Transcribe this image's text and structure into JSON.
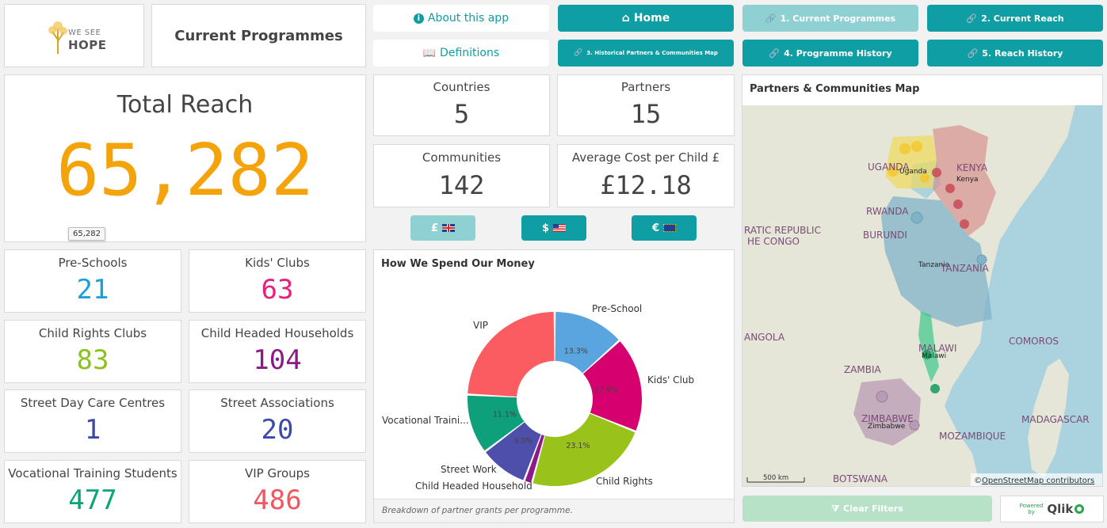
{
  "logo": {
    "text_top": "WE SEE",
    "text_bottom": "HOPE"
  },
  "page_title": "Current Programmes",
  "nav": {
    "about": "About this app",
    "definitions": "Definitions",
    "home": "Home",
    "current_programmes": "1. Current Programmes",
    "current_reach": "2. Current Reach",
    "historical_map": "3. Historical Partners & Communities Map",
    "programme_history": "4. Programme History",
    "reach_history": "5. Reach History"
  },
  "total_reach": {
    "label": "Total Reach",
    "value": "65,282",
    "tooltip": "65,282"
  },
  "kpis": [
    {
      "label": "Pre-Schools",
      "value": "21",
      "color": "#1aa0dc"
    },
    {
      "label": "Kids' Clubs",
      "value": "63",
      "color": "#e8207a"
    },
    {
      "label": "Child Rights Clubs",
      "value": "83",
      "color": "#8cc21c"
    },
    {
      "label": "Child Headed Households",
      "value": "104",
      "color": "#8a1a86"
    },
    {
      "label": "Street Day Care Centres",
      "value": "1",
      "color": "#3b4aa8"
    },
    {
      "label": "Street Associations",
      "value": "20",
      "color": "#3b4aa8"
    },
    {
      "label": "Vocational Training Students",
      "value": "477",
      "color": "#0aa37a"
    },
    {
      "label": "VIP Groups",
      "value": "486",
      "color": "#f0575e"
    }
  ],
  "stats": [
    {
      "label": "Countries",
      "value": "5"
    },
    {
      "label": "Partners",
      "value": "15"
    },
    {
      "label": "Communities",
      "value": "142"
    },
    {
      "label": "Average Cost per Child £",
      "value": "£12.18"
    }
  ],
  "currency": {
    "gbp": "£",
    "usd": "$",
    "eur": "€"
  },
  "spend_chart": {
    "title": "How We Spend Our Money",
    "footer": "Breakdown of partner grants per programme."
  },
  "chart_data": {
    "type": "pie",
    "title": "How We Spend Our Money",
    "slices": [
      {
        "label": "Pre-School",
        "value": 13.3,
        "pct_label": "13.3%",
        "color": "#5aa5e0"
      },
      {
        "label": "Kids' Club",
        "value": 17.8,
        "pct_label": "17.8%",
        "color": "#d6006f"
      },
      {
        "label": "Child Rights",
        "value": 23.1,
        "pct_label": "23.1%",
        "color": "#99c21b"
      },
      {
        "label": "Child Headed Household",
        "value": 1.5,
        "pct_label": "",
        "color": "#8e1a8a"
      },
      {
        "label": "Street Work",
        "value": 9.0,
        "pct_label": "9.0%",
        "color": "#4e4eab"
      },
      {
        "label": "Vocational Traini...",
        "value": 11.1,
        "pct_label": "11.1%",
        "color": "#0ea07a"
      },
      {
        "label": "VIP",
        "value": 24.2,
        "pct_label": "",
        "color": "#fb5c62"
      }
    ]
  },
  "map": {
    "title": "Partners & Communities Map",
    "labels": {
      "uganda": "UGANDA",
      "uganda_city": "Uganda",
      "kenya": "KENYA",
      "kenya_city": "Kenya",
      "rwanda": "RWANDA",
      "burundi": "BURUNDI",
      "drc1": "RATIC REPUBLIC",
      "drc2": "HE CONGO",
      "tanzania_city": "Tanzania",
      "tanzania": "TANZANIA",
      "angola": "ANGOLA",
      "malawi": "MALAWI",
      "malawi_city": "Malawi",
      "zambia": "ZAMBIA",
      "comoros": "COMOROS",
      "zimbabwe": "ZIMBABWE",
      "zimbabwe_city": "Zimbabwe",
      "mozambique": "MOZAMBIQUE",
      "madagascar": "MADAGASCAR",
      "botswana": "BOTSWANA"
    },
    "scale": "500 km",
    "attribution_prefix": "©",
    "attribution_link": "OpenStreetMap contributors"
  },
  "clear_filters": "Clear Filters",
  "powered_by": {
    "line1": "Powered",
    "line2": "by",
    "brand": "Qlik"
  }
}
